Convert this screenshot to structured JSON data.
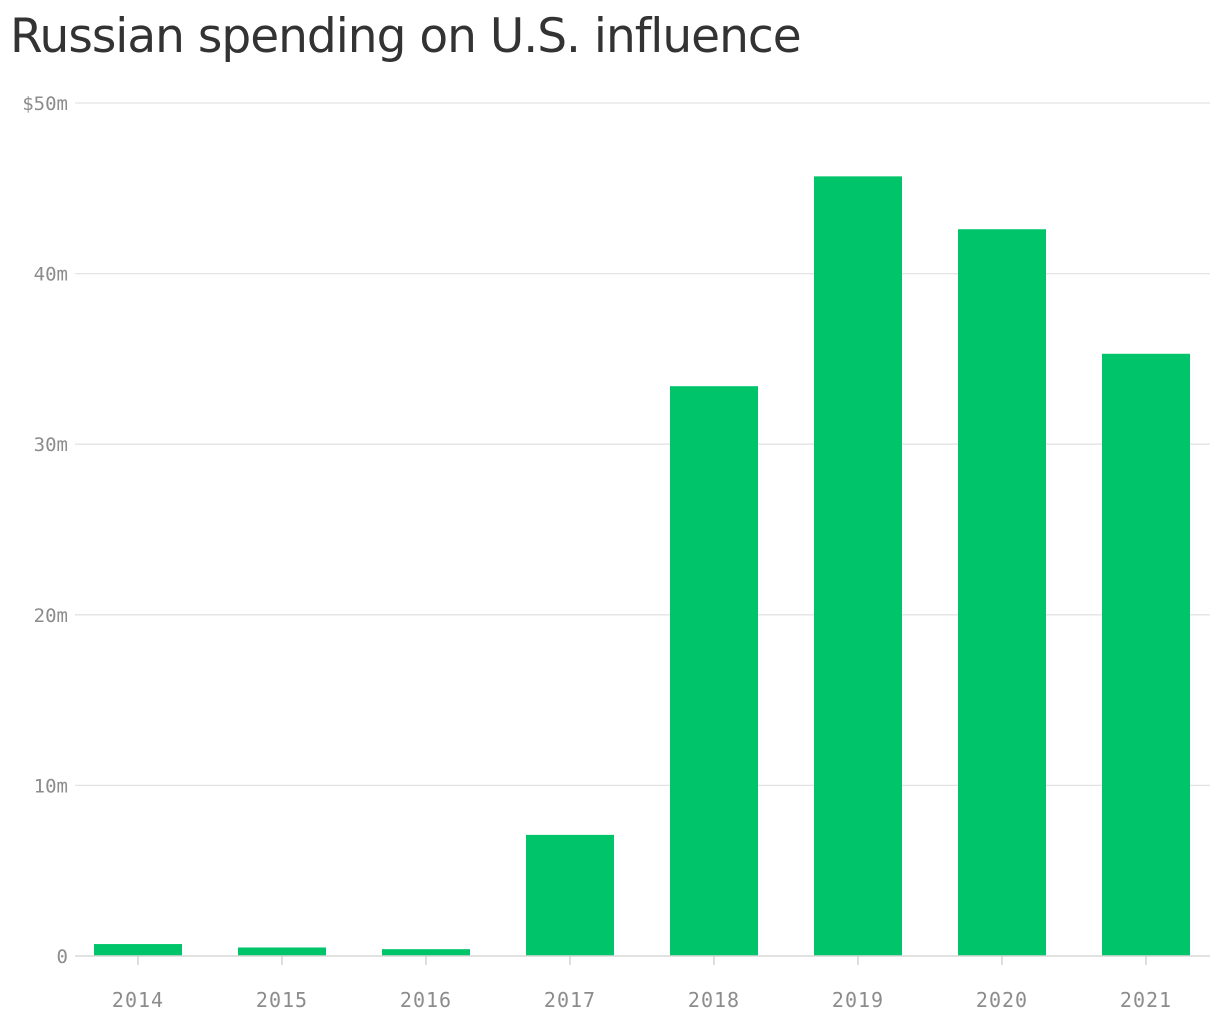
{
  "title": "Russian spending on U.S. influence",
  "chart_data": {
    "type": "bar",
    "title": "Russian spending on U.S. influence",
    "categories": [
      "2014",
      "2015",
      "2016",
      "2017",
      "2018",
      "2019",
      "2020",
      "2021"
    ],
    "values": [
      0.7,
      0.5,
      0.4,
      7.1,
      33.4,
      45.7,
      42.6,
      35.3
    ],
    "unit": "million USD",
    "xlabel": "",
    "ylabel": "",
    "ylim": [
      0,
      50
    ],
    "y_ticks": [
      0,
      10,
      20,
      30,
      40,
      50
    ],
    "y_tick_labels": [
      "0",
      "10m",
      "20m",
      "30m",
      "40m",
      "$50m"
    ],
    "grid": true,
    "legend": "none",
    "bar_color": "#00c46a"
  }
}
